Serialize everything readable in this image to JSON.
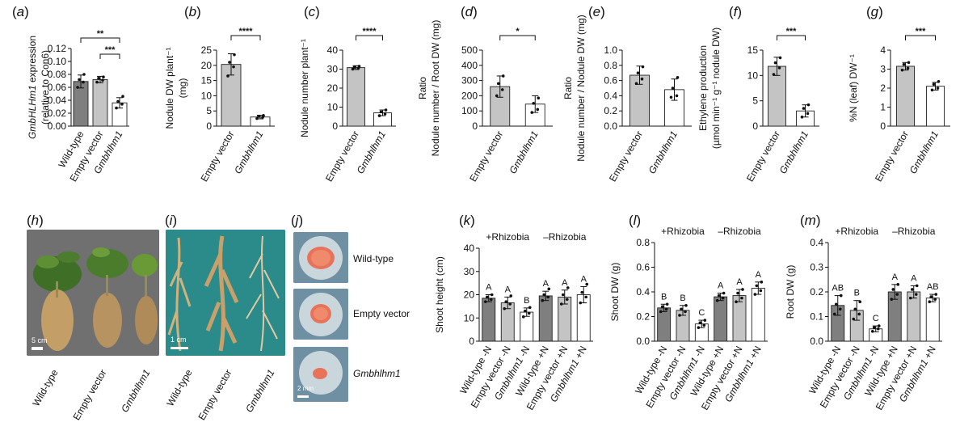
{
  "panel_labels": [
    "(a)",
    "(b)",
    "(c)",
    "(d)",
    "(e)",
    "(f)",
    "(g)",
    "(h)",
    "(i)",
    "(j)",
    "(k)",
    "(l)",
    "(m)"
  ],
  "photos": {
    "h": {
      "scale_bar": "5 cm",
      "labels": [
        "Wild-type",
        "Empty vector",
        "Gmbhlhm1"
      ]
    },
    "i": {
      "scale_bar": "1 cm",
      "labels": [
        "Wild-type",
        "Empty vector",
        "Gmbhlhm1"
      ]
    },
    "j": {
      "scale_bar": "2 mm",
      "labels": [
        "Wild-type",
        "Empty vector",
        "Gmbhlhm1"
      ]
    }
  },
  "colors": {
    "wild_type": "#7f7f7f",
    "empty_vector": "#c4c4c4",
    "mutant": "#ffffff",
    "photo_bg_h": "#6f6f6f",
    "photo_bg_i": "#2a8b8a"
  },
  "chart_data": [
    {
      "id": "a",
      "type": "bar",
      "categories": [
        "Wild-type",
        "Empty vector",
        "Gmbhlhm1"
      ],
      "values": [
        0.069,
        0.072,
        0.036
      ],
      "errors": [
        0.01,
        0.005,
        0.008
      ],
      "points": [
        [
          0.06,
          0.068,
          0.072,
          0.08
        ],
        [
          0.068,
          0.071,
          0.074,
          0.076
        ],
        [
          0.028,
          0.034,
          0.038,
          0.046
        ]
      ],
      "ylabel": [
        "GmbHLHm1 expression",
        "(relative to Con6)"
      ],
      "yticks": [
        "0.00",
        "0.02",
        "0.04",
        "0.06",
        "0.08",
        "0.10",
        "0.12"
      ],
      "ylim": [
        0,
        0.12
      ],
      "significance": [
        {
          "from": 0,
          "to": 2,
          "label": "**"
        },
        {
          "from": 1,
          "to": 2,
          "label": "***"
        }
      ]
    },
    {
      "id": "b",
      "type": "bar",
      "categories": [
        "Empty vector",
        "Gmbhlhm1"
      ],
      "values": [
        20.3,
        3.0
      ],
      "errors": [
        3.5,
        0.6
      ],
      "points": [
        [
          16.5,
          19.5,
          21.0,
          23.5
        ],
        [
          2.5,
          2.9,
          3.2,
          3.5
        ]
      ],
      "ylabel": [
        "Nodule DW plant⁻¹",
        "(mg)"
      ],
      "yticks": [
        "0",
        "5",
        "10",
        "15",
        "20",
        "25"
      ],
      "ylim": [
        0,
        25
      ],
      "significance": [
        {
          "from": 0,
          "to": 1,
          "label": "****"
        }
      ]
    },
    {
      "id": "c",
      "type": "bar",
      "categories": [
        "Empty vector",
        "Gmbhlhm1"
      ],
      "values": [
        30.8,
        7.0
      ],
      "errors": [
        1.0,
        1.5
      ],
      "points": [
        [
          30.0,
          30.5,
          31.0,
          31.5
        ],
        [
          5.5,
          6.5,
          7.5,
          8.5
        ]
      ],
      "ylabel": [
        "Nodule number plant⁻¹"
      ],
      "yticks": [
        "0",
        "10",
        "20",
        "30",
        "40"
      ],
      "ylim": [
        0,
        40
      ],
      "significance": [
        {
          "from": 0,
          "to": 1,
          "label": "****"
        }
      ]
    },
    {
      "id": "d",
      "type": "bar",
      "categories": [
        "Empty vector",
        "Gmbhlhm1"
      ],
      "values": [
        260,
        145
      ],
      "errors": [
        70,
        55
      ],
      "points": [
        [
          200,
          240,
          280,
          330
        ],
        [
          90,
          110,
          150,
          185
        ]
      ],
      "ylabel": [
        "Ratio",
        "Nodule number / Root DW (mg)"
      ],
      "yticks": [
        "0",
        "100",
        "200",
        "300",
        "400",
        "500"
      ],
      "ylim": [
        0,
        500
      ],
      "significance": [
        {
          "from": 0,
          "to": 1,
          "label": "*"
        }
      ]
    },
    {
      "id": "e",
      "type": "bar",
      "categories": [
        "Empty vector",
        "Gmbhlhm1"
      ],
      "values": [
        0.67,
        0.48
      ],
      "errors": [
        0.12,
        0.14
      ],
      "points": [
        [
          0.56,
          0.62,
          0.7,
          0.78
        ],
        [
          0.38,
          0.4,
          0.5,
          0.64
        ]
      ],
      "ylabel": [
        "Ratio",
        "Nodule number / Nodule DW (mg)"
      ],
      "yticks": [
        "0.0",
        "0.2",
        "0.4",
        "0.6",
        "0.8",
        "1.0"
      ],
      "ylim": [
        0,
        1.0
      ],
      "significance": []
    },
    {
      "id": "f",
      "type": "bar",
      "categories": [
        "Empty vector",
        "Gmbhlhm1"
      ],
      "values": [
        11.8,
        3.0
      ],
      "errors": [
        1.8,
        1.2
      ],
      "points": [
        [
          10.2,
          11.5,
          12.5,
          13.5
        ],
        [
          1.8,
          2.5,
          3.5,
          4.2
        ]
      ],
      "ylabel": [
        "Ethylene production",
        "(µmol min⁻¹ g⁻¹ nodule DW)"
      ],
      "yticks": [
        "0",
        "5",
        "10",
        "15"
      ],
      "ylim": [
        0,
        15
      ],
      "significance": [
        {
          "from": 0,
          "to": 1,
          "label": "***"
        }
      ]
    },
    {
      "id": "g",
      "type": "bar",
      "categories": [
        "Empty vector",
        "Gmbhlhm1"
      ],
      "values": [
        3.15,
        2.1
      ],
      "errors": [
        0.2,
        0.2
      ],
      "points": [
        [
          2.95,
          3.05,
          3.25,
          3.35
        ],
        [
          1.9,
          2.0,
          2.2,
          2.35
        ]
      ],
      "ylabel": [
        "%N (leaf) DW⁻¹"
      ],
      "yticks": [
        "0",
        "1",
        "2",
        "3",
        "4"
      ],
      "ylim": [
        0,
        4
      ],
      "significance": [
        {
          "from": 0,
          "to": 1,
          "label": "***"
        }
      ]
    },
    {
      "id": "k",
      "type": "bar",
      "categories": [
        "Wild-type -N",
        "Empty vector -N",
        "Gmbhlhm1 -N",
        "Wild-type +N",
        "Empty vector +N",
        "Gmbhlhm1 +N"
      ],
      "values": [
        18.5,
        16.5,
        12.5,
        19.5,
        19.0,
        20.0
      ],
      "errors": [
        1.5,
        2.5,
        1.8,
        2.0,
        3.0,
        3.5
      ],
      "points": [
        [
          17,
          18,
          19,
          20
        ],
        [
          14,
          16,
          17,
          19.5
        ],
        [
          10.5,
          12,
          13,
          14.5
        ],
        [
          17.5,
          19,
          20,
          22.5
        ],
        [
          16,
          18,
          20,
          23
        ],
        [
          16.5,
          19,
          21,
          24.5
        ]
      ],
      "letters": [
        "A",
        "A",
        "B",
        "A",
        "A",
        "A"
      ],
      "group_labels": [
        "+Rhizobia",
        "–Rhizobia"
      ],
      "ylabel": [
        "Shoot height (cm)"
      ],
      "yticks": [
        "0",
        "10",
        "20",
        "30",
        "40"
      ],
      "ylim": [
        0,
        40
      ]
    },
    {
      "id": "l",
      "type": "bar",
      "categories": [
        "Wild-type -N",
        "Empty vector -N",
        "Gmbhlhm1 -N",
        "Wild-type +N",
        "Empty vector +N",
        "Gmbhlhm1 +N"
      ],
      "values": [
        0.27,
        0.25,
        0.14,
        0.36,
        0.37,
        0.43
      ],
      "errors": [
        0.03,
        0.04,
        0.03,
        0.03,
        0.05,
        0.05
      ],
      "points": [
        [
          0.24,
          0.26,
          0.28,
          0.3
        ],
        [
          0.21,
          0.24,
          0.26,
          0.29
        ],
        [
          0.11,
          0.13,
          0.15,
          0.17
        ],
        [
          0.33,
          0.35,
          0.37,
          0.39
        ],
        [
          0.32,
          0.35,
          0.39,
          0.42
        ],
        [
          0.38,
          0.41,
          0.45,
          0.48
        ]
      ],
      "letters": [
        "B",
        "B",
        "C",
        "A",
        "A",
        "A"
      ],
      "group_labels": [
        "+Rhizobia",
        "–Rhizobia"
      ],
      "ylabel": [
        "Shoot DW (g)"
      ],
      "yticks": [
        "0.0",
        "0.2",
        "0.4",
        "0.6",
        "0.8"
      ],
      "ylim": [
        0,
        0.8
      ]
    },
    {
      "id": "m",
      "type": "bar",
      "categories": [
        "Wild-type -N",
        "Empty vector -N",
        "Gmbhlhm1 -N",
        "Wild-type +N",
        "Empty vector +N",
        "Gmbhlhm1 +N"
      ],
      "values": [
        0.145,
        0.125,
        0.05,
        0.2,
        0.2,
        0.175
      ],
      "errors": [
        0.04,
        0.04,
        0.012,
        0.03,
        0.025,
        0.015
      ],
      "points": [
        [
          0.11,
          0.13,
          0.15,
          0.185
        ],
        [
          0.09,
          0.11,
          0.13,
          0.16
        ],
        [
          0.04,
          0.05,
          0.055,
          0.062
        ],
        [
          0.17,
          0.19,
          0.21,
          0.23
        ],
        [
          0.175,
          0.19,
          0.21,
          0.225
        ],
        [
          0.16,
          0.17,
          0.18,
          0.19
        ]
      ],
      "letters": [
        "AB",
        "B",
        "C",
        "A",
        "A",
        "AB"
      ],
      "group_labels": [
        "+Rhizobia",
        "–Rhizobia"
      ],
      "ylabel": [
        "Root DW (g)"
      ],
      "yticks": [
        "0.0",
        "0.1",
        "0.2",
        "0.3",
        "0.4"
      ],
      "ylim": [
        0,
        0.4
      ]
    }
  ]
}
